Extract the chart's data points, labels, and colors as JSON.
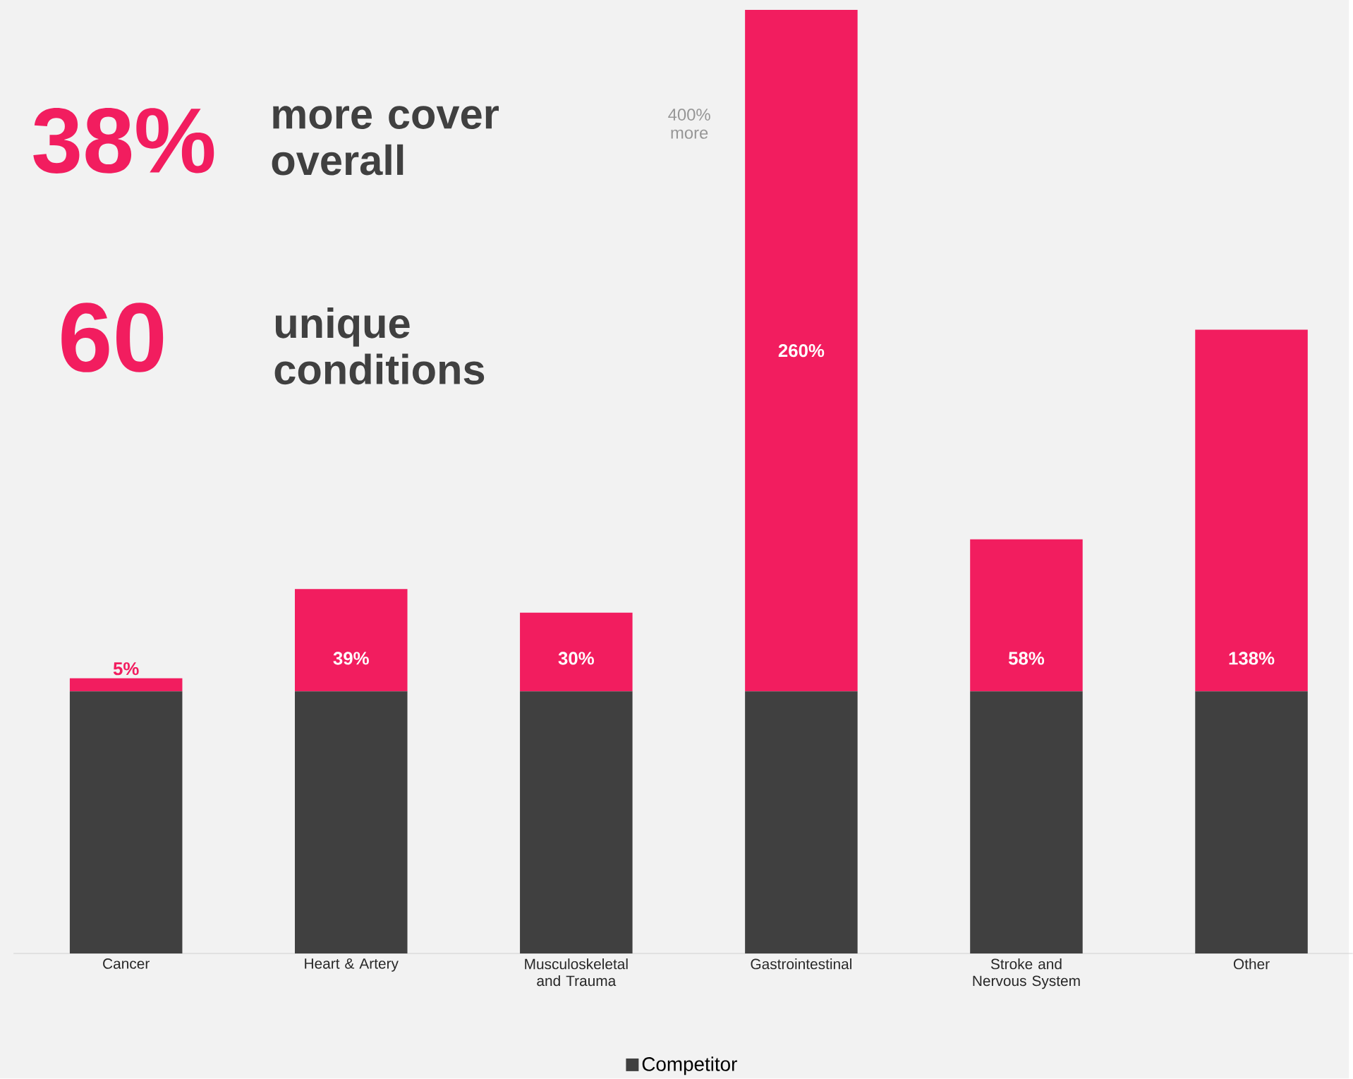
{
  "chart_data": {
    "type": "bar",
    "stacked": true,
    "legend": "bottom",
    "categories": [
      "Cancer",
      "Heart & Artery",
      "Musculoskeletal and Trauma",
      "Gastrointestinal",
      "Stroke and Nervous System",
      "Other"
    ],
    "series": [
      {
        "name": "Competitor",
        "color": "#404040",
        "values": [
          100,
          100,
          100,
          100,
          100,
          100
        ]
      },
      {
        "color": "#f21d5f",
        "values": [
          5,
          39,
          30,
          260,
          58,
          138
        ],
        "value_labels": [
          "5%",
          "39%",
          "30%",
          "260%",
          "58%",
          "138%"
        ]
      }
    ],
    "annotations": [
      "38%",
      "more cover overall",
      "60",
      "unique conditions",
      "400% more"
    ]
  }
}
